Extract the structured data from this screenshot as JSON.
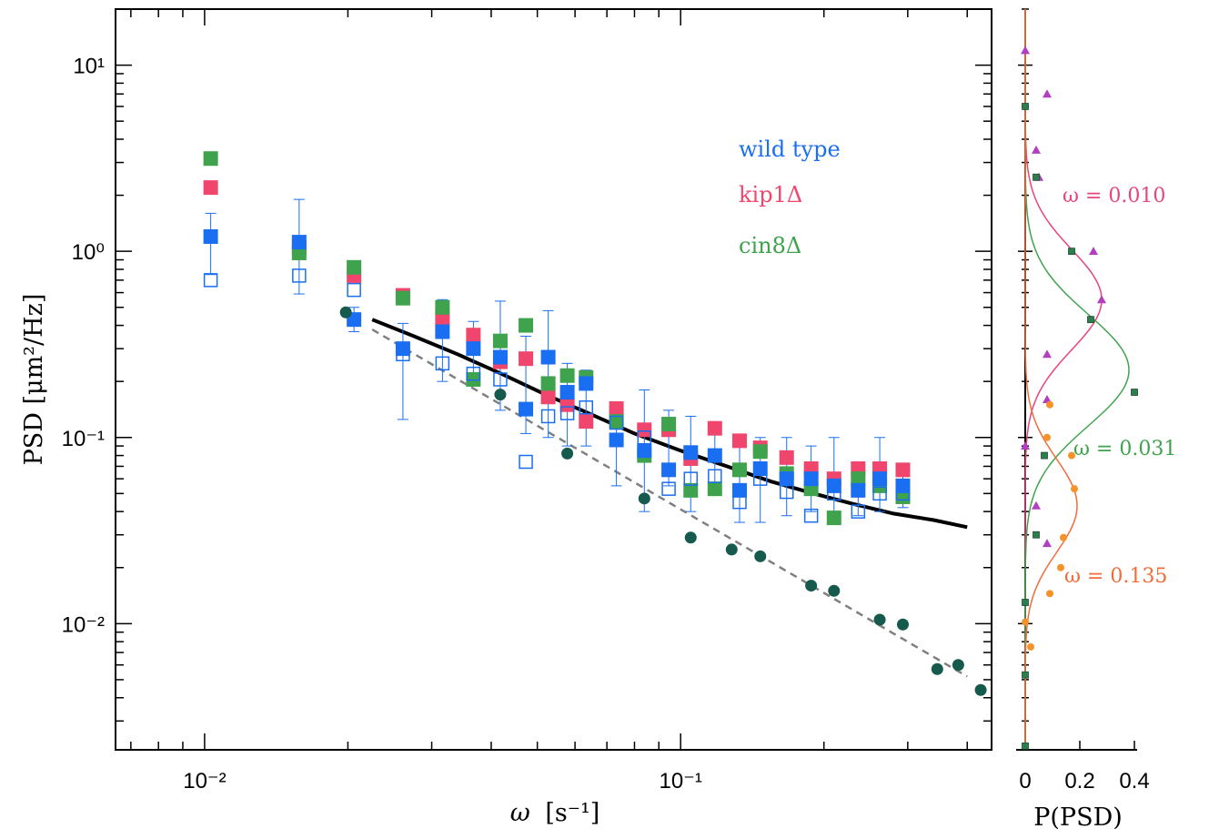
{
  "chart_data": [
    {
      "type": "scatter",
      "xlabel_main": "ω",
      "xlabel_unit": "[s⁻¹]",
      "ylabel": "PSD [μm²/Hz]",
      "xscale": "log",
      "yscale": "log",
      "xlim": [
        0.0065,
        0.45
      ],
      "ylim": [
        0.0021,
        20
      ],
      "x_ticks": [
        {
          "value": 0.01,
          "label": "10⁻²"
        },
        {
          "value": 0.1,
          "label": "10⁻¹"
        }
      ],
      "y_ticks": [
        {
          "value": 10,
          "label": "10¹"
        },
        {
          "value": 1,
          "label": "10⁰"
        },
        {
          "value": 0.1,
          "label": "10⁻¹"
        },
        {
          "value": 0.01,
          "label": "10⁻²"
        }
      ],
      "legend_position": "top-right",
      "legend": [
        {
          "label": "wild type",
          "color": "#1a6ef2"
        },
        {
          "label": "kip1Δ",
          "color": "#f0466e"
        },
        {
          "label": "cin8Δ",
          "color": "#3fa34d"
        }
      ],
      "series": [
        {
          "name": "kip1Δ",
          "marker": "square-filled",
          "color": "#f0466e",
          "points": [
            [
              0.0103,
              2.2
            ],
            [
              0.0158,
              1.05
            ],
            [
              0.0206,
              0.74
            ],
            [
              0.0261,
              0.58
            ],
            [
              0.0316,
              0.44
            ],
            [
              0.0367,
              0.355
            ],
            [
              0.0418,
              0.255
            ],
            [
              0.0473,
              0.265
            ],
            [
              0.0527,
              0.165
            ],
            [
              0.0578,
              0.15
            ],
            [
              0.0633,
              0.122
            ],
            [
              0.0733,
              0.143
            ],
            [
              0.0839,
              0.11
            ],
            [
              0.0944,
              0.11
            ],
            [
              0.105,
              0.077
            ],
            [
              0.118,
              0.112
            ],
            [
              0.133,
              0.096
            ],
            [
              0.147,
              0.088
            ],
            [
              0.167,
              0.078
            ],
            [
              0.188,
              0.068
            ],
            [
              0.21,
              0.06
            ],
            [
              0.236,
              0.068
            ],
            [
              0.262,
              0.068
            ],
            [
              0.293,
              0.067
            ]
          ]
        },
        {
          "name": "cin8Δ",
          "marker": "square-filled",
          "color": "#3fa34d",
          "points": [
            [
              0.0103,
              3.15
            ],
            [
              0.0158,
              0.98
            ],
            [
              0.0206,
              0.82
            ],
            [
              0.0261,
              0.56
            ],
            [
              0.0316,
              0.5
            ],
            [
              0.0367,
              0.205
            ],
            [
              0.0418,
              0.33
            ],
            [
              0.0473,
              0.4
            ],
            [
              0.0527,
              0.195
            ],
            [
              0.0578,
              0.215
            ],
            [
              0.0633,
              0.21
            ],
            [
              0.0733,
              0.122
            ],
            [
              0.0839,
              0.08
            ],
            [
              0.0944,
              0.118
            ],
            [
              0.105,
              0.052
            ],
            [
              0.118,
              0.053
            ],
            [
              0.133,
              0.067
            ],
            [
              0.147,
              0.084
            ],
            [
              0.167,
              0.064
            ],
            [
              0.188,
              0.053
            ],
            [
              0.21,
              0.037
            ],
            [
              0.236,
              0.06
            ],
            [
              0.262,
              0.055
            ],
            [
              0.293,
              0.048
            ]
          ]
        },
        {
          "name": "wild type",
          "marker": "square-filled",
          "color": "#1a6ef2",
          "points": [
            [
              0.0103,
              1.2
            ],
            [
              0.0158,
              1.12
            ],
            [
              0.0206,
              0.43
            ],
            [
              0.0261,
              0.3
            ],
            [
              0.0316,
              0.37
            ],
            [
              0.0367,
              0.3
            ],
            [
              0.0418,
              0.27
            ],
            [
              0.0473,
              0.142
            ],
            [
              0.0527,
              0.27
            ],
            [
              0.0578,
              0.175
            ],
            [
              0.0633,
              0.195
            ],
            [
              0.0733,
              0.097
            ],
            [
              0.0839,
              0.085
            ],
            [
              0.0944,
              0.067
            ],
            [
              0.105,
              0.083
            ],
            [
              0.118,
              0.08
            ],
            [
              0.133,
              0.052
            ],
            [
              0.147,
              0.068
            ],
            [
              0.167,
              0.06
            ],
            [
              0.188,
              0.06
            ],
            [
              0.21,
              0.055
            ],
            [
              0.236,
              0.052
            ],
            [
              0.262,
              0.06
            ],
            [
              0.293,
              0.055
            ]
          ],
          "error_upper": [
            1.6,
            1.9,
            0.5,
            0.41,
            0.55,
            0.42,
            0.54,
            0.35,
            0.48,
            0.25,
            0.23,
            0.15,
            0.18,
            0.14,
            0.13,
            0.12,
            0.09,
            0.1,
            0.1,
            0.09,
            0.1,
            0.07,
            0.1,
            0.065
          ],
          "error_lower": [
            0.75,
            0.59,
            0.37,
            0.125,
            0.2,
            0.2,
            0.14,
            0.105,
            0.1,
            0.09,
            0.09,
            0.055,
            0.04,
            0.055,
            0.04,
            0.05,
            0.035,
            0.035,
            0.038,
            0.04,
            0.038,
            0.038,
            0.04,
            0.042
          ]
        },
        {
          "name": "open squares",
          "marker": "square-open",
          "color": "#1a6ef2",
          "points": [
            [
              0.0103,
              0.7
            ],
            [
              0.0158,
              0.74
            ],
            [
              0.0206,
              0.62
            ],
            [
              0.0261,
              0.28
            ],
            [
              0.0316,
              0.25
            ],
            [
              0.0367,
              0.22
            ],
            [
              0.0418,
              0.205
            ],
            [
              0.0473,
              0.074
            ],
            [
              0.0527,
              0.13
            ],
            [
              0.0578,
              0.135
            ],
            [
              0.0633,
              0.145
            ],
            [
              0.0733,
              0.12
            ],
            [
              0.0839,
              0.1
            ],
            [
              0.0944,
              0.053
            ],
            [
              0.105,
              0.06
            ],
            [
              0.118,
              0.062
            ],
            [
              0.133,
              0.045
            ],
            [
              0.147,
              0.06
            ],
            [
              0.167,
              0.051
            ],
            [
              0.188,
              0.038
            ],
            [
              0.21,
              0.05
            ],
            [
              0.236,
              0.04
            ],
            [
              0.262,
              0.05
            ],
            [
              0.293,
              0.05
            ]
          ]
        },
        {
          "name": "dark circles",
          "marker": "circle-filled",
          "color": "#16594d",
          "points": [
            [
              0.0198,
              0.47
            ],
            [
              0.0418,
              0.17
            ],
            [
              0.0578,
              0.082
            ],
            [
              0.0839,
              0.047
            ],
            [
              0.105,
              0.029
            ],
            [
              0.128,
              0.025
            ],
            [
              0.147,
              0.023
            ],
            [
              0.188,
              0.016
            ],
            [
              0.21,
              0.015
            ],
            [
              0.262,
              0.0105
            ],
            [
              0.293,
              0.0099
            ],
            [
              0.346,
              0.0057
            ],
            [
              0.383,
              0.006
            ],
            [
              0.427,
              0.0044
            ]
          ]
        }
      ],
      "fit_lines": [
        {
          "style": "solid",
          "color": "#000000",
          "points": [
            [
              0.0225,
              0.43
            ],
            [
              0.0275,
              0.35
            ],
            [
              0.034,
              0.28
            ],
            [
              0.042,
              0.22
            ],
            [
              0.052,
              0.17
            ],
            [
              0.064,
              0.135
            ],
            [
              0.08,
              0.105
            ],
            [
              0.1,
              0.085
            ],
            [
              0.125,
              0.07
            ],
            [
              0.155,
              0.058
            ],
            [
              0.19,
              0.05
            ],
            [
              0.23,
              0.044
            ],
            [
              0.28,
              0.039
            ],
            [
              0.34,
              0.036
            ],
            [
              0.4,
              0.033
            ]
          ]
        },
        {
          "style": "dashed",
          "color": "#808080",
          "points": [
            [
              0.0225,
              0.38
            ],
            [
              0.4,
              0.0052
            ]
          ]
        }
      ]
    },
    {
      "type": "scatter",
      "xlabel": "P(PSD)",
      "xlim": [
        -0.02,
        0.45
      ],
      "x_ticks": [
        {
          "value": 0,
          "label": "0"
        },
        {
          "value": 0.2,
          "label": "0.2"
        },
        {
          "value": 0.4,
          "label": "0.4"
        }
      ],
      "yscale": "log",
      "ylim": [
        0.0021,
        20
      ],
      "annotations": [
        {
          "text": "ω = 0.010",
          "color": "#e8457a"
        },
        {
          "text": "ω = 0.031",
          "color": "#3fa34d"
        },
        {
          "text": "ω = 0.135",
          "color": "#f26b3a"
        }
      ],
      "series": [
        {
          "name": "ω = 0.010",
          "marker": "triangle",
          "color": "#b23fbf",
          "curve_color": "#e8457a",
          "curve": {
            "peak": 0.28,
            "center_psd": 0.55,
            "log10_width": 0.27
          },
          "points": [
            [
              0,
              12
            ],
            [
              0.08,
              7
            ],
            [
              0.04,
              3.5
            ],
            [
              0.05,
              2.5
            ],
            [
              0.25,
              1.0
            ],
            [
              0.28,
              0.55
            ],
            [
              0.08,
              0.28
            ],
            [
              0.08,
              0.16
            ],
            [
              0,
              0.09
            ],
            [
              0.04,
              0.043
            ],
            [
              0.08,
              0.027
            ]
          ]
        },
        {
          "name": "ω = 0.031",
          "marker": "square-small",
          "color": "#2e7d4f",
          "curve_color": "#3fa34d",
          "curve": {
            "peak": 0.38,
            "center_psd": 0.23,
            "log10_width": 0.3
          },
          "points": [
            [
              0,
              6
            ],
            [
              0.04,
              2.5
            ],
            [
              0.17,
              1.0
            ],
            [
              0.24,
              0.43
            ],
            [
              0.4,
              0.175
            ],
            [
              0.07,
              0.08
            ],
            [
              0.04,
              0.03
            ],
            [
              0,
              0.013
            ],
            [
              0,
              0.0053
            ],
            [
              0,
              0.0022
            ]
          ]
        },
        {
          "name": "ω = 0.135",
          "marker": "circle-small",
          "color": "#f5922a",
          "curve_color": "#f26b3a",
          "curve": {
            "peak": 0.19,
            "center_psd": 0.043,
            "log10_width": 0.25
          },
          "points": [
            [
              0.09,
              0.15
            ],
            [
              0.08,
              0.1
            ],
            [
              0.17,
              0.08
            ],
            [
              0.18,
              0.053
            ],
            [
              0.14,
              0.029
            ],
            [
              0.13,
              0.02
            ],
            [
              0.09,
              0.0145
            ],
            [
              0,
              0.0102
            ],
            [
              0.02,
              0.0075
            ]
          ]
        }
      ]
    }
  ]
}
